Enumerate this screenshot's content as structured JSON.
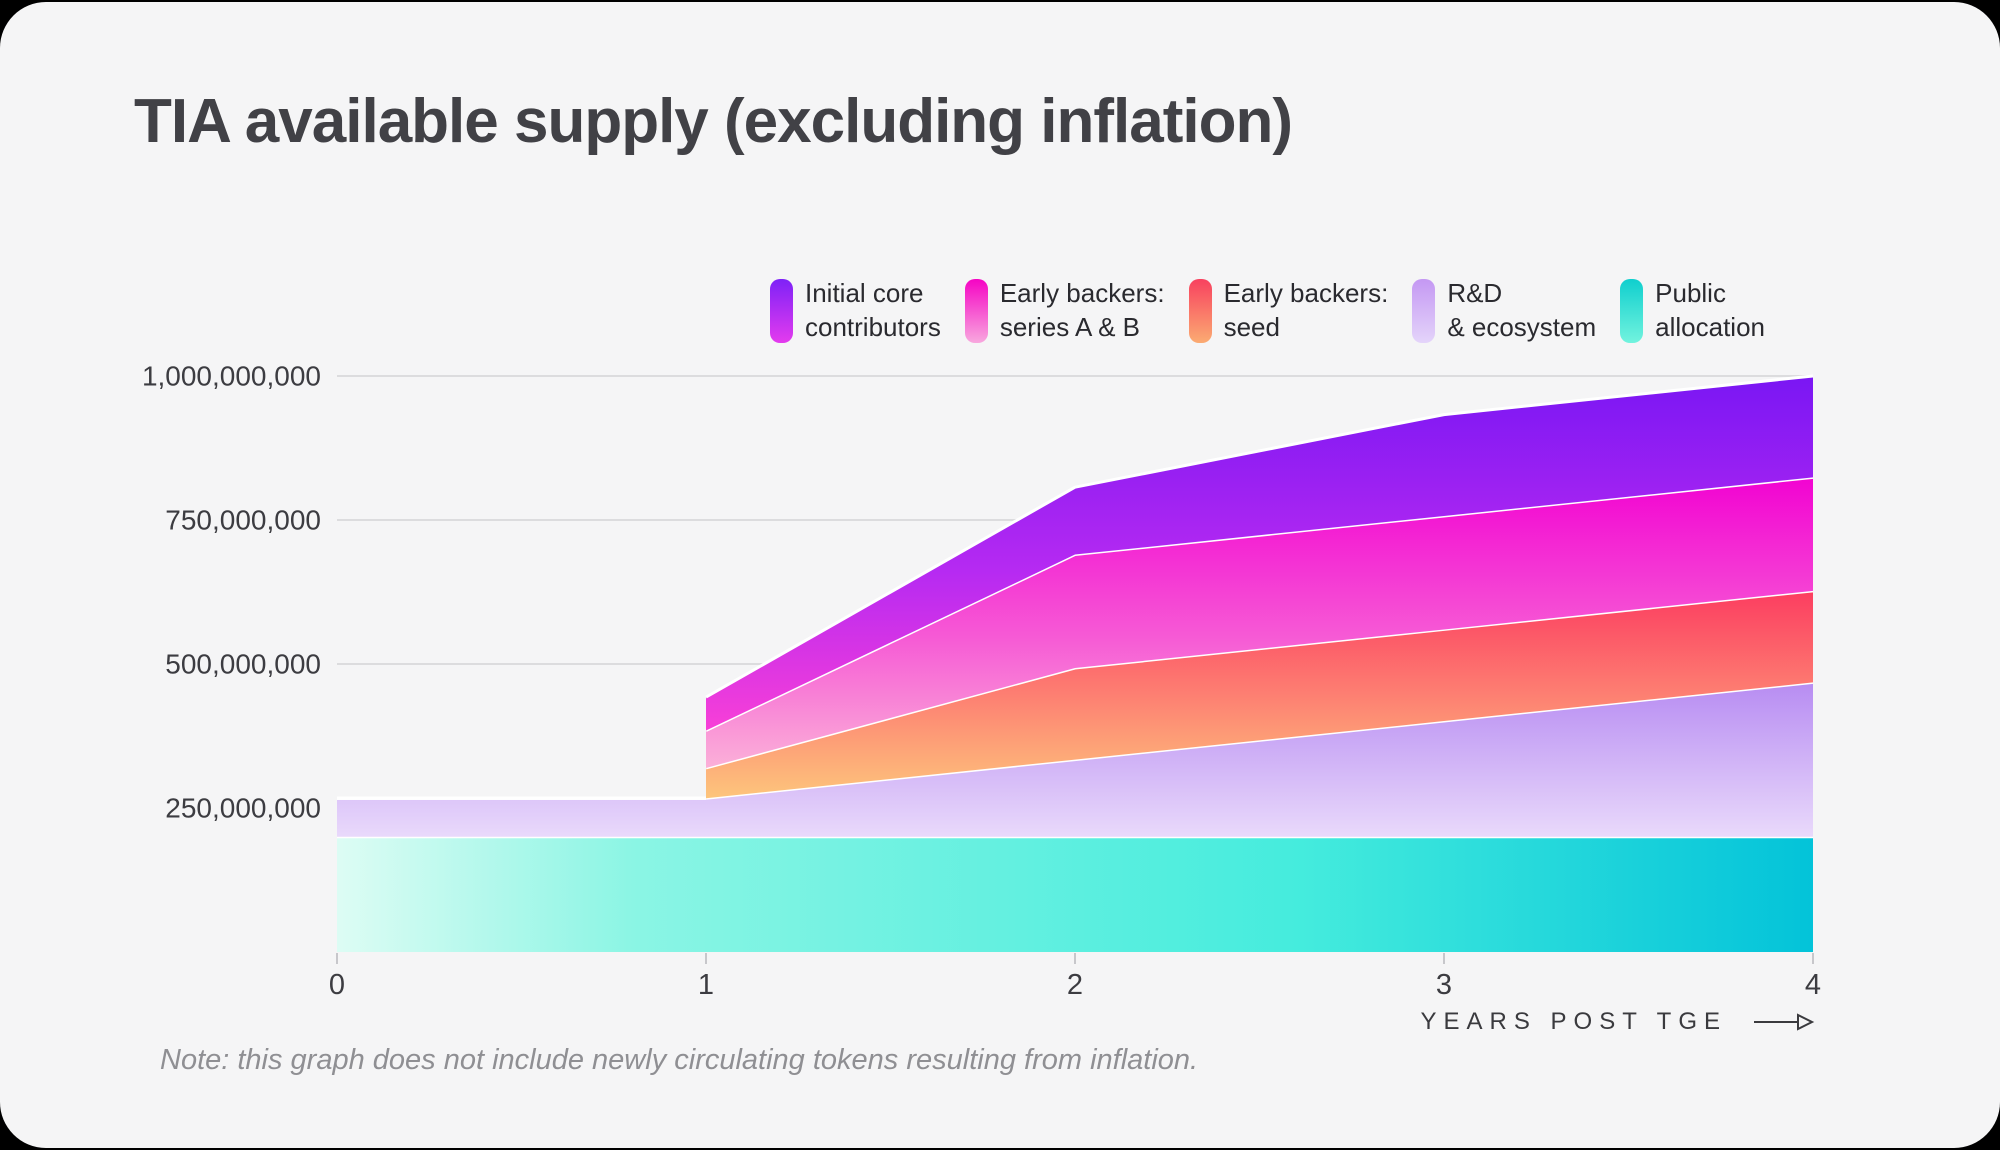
{
  "title": "TIA available supply (excluding inflation)",
  "note": "Note: this graph does not include newly circulating tokens resulting from inflation.",
  "x_axis_title": "YEARS POST TGE",
  "colors": {
    "card_background": "#f5f5f6",
    "page_background": "#000000",
    "title_text": "#414146",
    "axis_text": "#3c3c41",
    "note_text": "#8f8f93",
    "gridline": "#dcdcde",
    "tick": "#c7c7cb",
    "band_separator": "#ffffff"
  },
  "legend": [
    {
      "line1": "Initial core",
      "line2": "contributors",
      "gradient": [
        "#7e22f7",
        "#e43bee"
      ]
    },
    {
      "line1": "Early backers:",
      "line2": "series A & B",
      "gradient": [
        "#f504c4",
        "#f8a8de"
      ]
    },
    {
      "line1": "Early backers:",
      "line2": "seed",
      "gradient": [
        "#f8415f",
        "#fbab72"
      ]
    },
    {
      "line1": "R&D",
      "line2": "& ecosystem",
      "gradient": [
        "#c498f3",
        "#e4d4fa"
      ]
    },
    {
      "line1": "Public",
      "line2": "allocation",
      "gradient": [
        "#0fcfce",
        "#72f3de"
      ]
    }
  ],
  "chart_data": {
    "type": "area",
    "stacked": true,
    "title": "TIA available supply (excluding inflation)",
    "xlabel": "YEARS POST TGE",
    "ylabel": "",
    "x": [
      0,
      1,
      1,
      2,
      3,
      4
    ],
    "x_note": "x = years post TGE; x=1 appears twice to encode the vertical unlock cliff at year 1",
    "series_bottom_to_top": [
      {
        "name": "Public allocation",
        "values_millions": [
          200,
          200,
          200,
          200,
          200,
          200
        ],
        "gradient_direction": "horizontal",
        "gradient": [
          "#ddfcf4",
          "#8bf5e4",
          "#45ecdd",
          "#03c3d9"
        ],
        "gradient_stops": [
          0,
          0.2,
          0.65,
          1
        ]
      },
      {
        "name": "R&D & ecosystem",
        "values_millions": [
          67,
          67,
          67,
          134,
          201,
          268
        ],
        "gradient_direction": "vertical",
        "gradient": [
          "#b78cf2",
          "#e9d9fb"
        ],
        "gradient_stops": [
          0,
          1
        ]
      },
      {
        "name": "Early backers: seed",
        "values_millions": [
          0,
          0,
          52.5,
          159,
          159,
          159
        ],
        "gradient_direction": "vertical",
        "gradient": [
          "#fc3d60",
          "#fd7f72",
          "#fdc57c"
        ],
        "gradient_stops": [
          0,
          0.5,
          1
        ]
      },
      {
        "name": "Early backers: series A & B",
        "values_millions": [
          0,
          0,
          65,
          197,
          197,
          197
        ],
        "gradient_direction": "vertical",
        "gradient": [
          "#f203d2",
          "#f65ad5",
          "#fbb0d8"
        ],
        "gradient_stops": [
          0,
          0.55,
          1
        ]
      },
      {
        "name": "Initial core contributors",
        "values_millions": [
          0,
          0,
          58,
          117,
          176,
          176
        ],
        "gradient_direction": "vertical",
        "gradient": [
          "#7a16f3",
          "#b62af2",
          "#f83fd7"
        ],
        "gradient_stops": [
          0,
          0.55,
          1
        ]
      }
    ],
    "xticks": [
      0,
      1,
      2,
      3,
      4
    ],
    "xtick_labels": [
      "0",
      "1",
      "2",
      "3",
      "4"
    ],
    "yticks_millions": [
      250,
      500,
      750,
      1000
    ],
    "ytick_labels": [
      "250,000,000",
      "500,000,000",
      "750,000,000",
      "1,000,000,000"
    ],
    "ylim_millions": [
      0,
      1000
    ],
    "grid": "horizontal",
    "legend_position": "top"
  }
}
